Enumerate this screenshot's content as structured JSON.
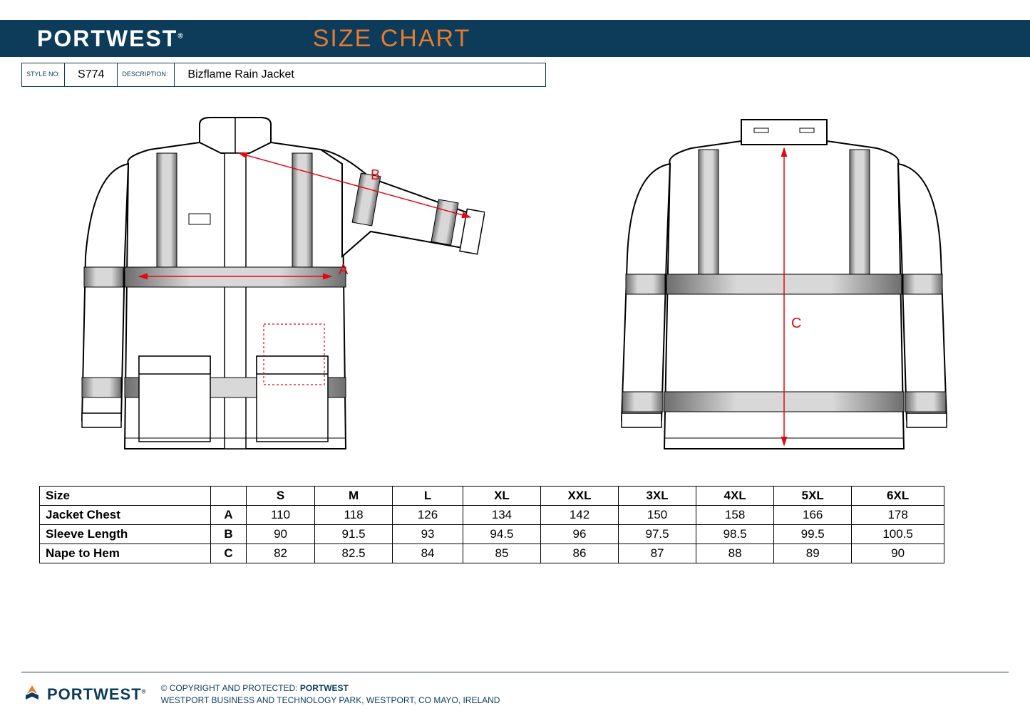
{
  "header": {
    "brand": "PORTWEST",
    "brand_r": "®",
    "title": "SIZE CHART",
    "bg_color": "#0c3c5a",
    "title_color": "#e67a2e"
  },
  "info": {
    "style_label": "STYLE NO:",
    "style_value": "S774",
    "desc_label": "DESCRIPTION:",
    "desc_value": "Bizflame Rain Jacket"
  },
  "diagram": {
    "label_A": "A",
    "label_B": "B",
    "label_C": "C",
    "label_color": "#e30613",
    "line_color": "#e30613",
    "stroke_color": "#000000",
    "fill_color": "#ffffff",
    "stripe_color": "#b5b5b5"
  },
  "table": {
    "header": [
      "Size",
      "",
      "S",
      "M",
      "L",
      "XL",
      "XXL",
      "3XL",
      "4XL",
      "5XL",
      "6XL"
    ],
    "rows": [
      {
        "label": "Jacket Chest",
        "measure": "A",
        "values": [
          "110",
          "118",
          "126",
          "134",
          "142",
          "150",
          "158",
          "166",
          "178"
        ]
      },
      {
        "label": "Sleeve Length",
        "measure": "B",
        "values": [
          "90",
          "91.5",
          "93",
          "94.5",
          "96",
          "97.5",
          "98.5",
          "99.5",
          "100.5"
        ]
      },
      {
        "label": "Nape to Hem",
        "measure": "C",
        "values": [
          "82",
          "82.5",
          "84",
          "85",
          "86",
          "87",
          "88",
          "89",
          "90"
        ]
      }
    ]
  },
  "footer": {
    "brand": "PORTWEST",
    "brand_r": "®",
    "line1_prefix": "© COPYRIGHT AND PROTECTED: ",
    "line1_bold": "PORTWEST",
    "line2": "WESTPORT BUSINESS AND TECHNOLOGY PARK, WESTPORT, CO MAYO, IRELAND",
    "logo_color": "#e67a2e",
    "text_color": "#0c3c5a"
  }
}
